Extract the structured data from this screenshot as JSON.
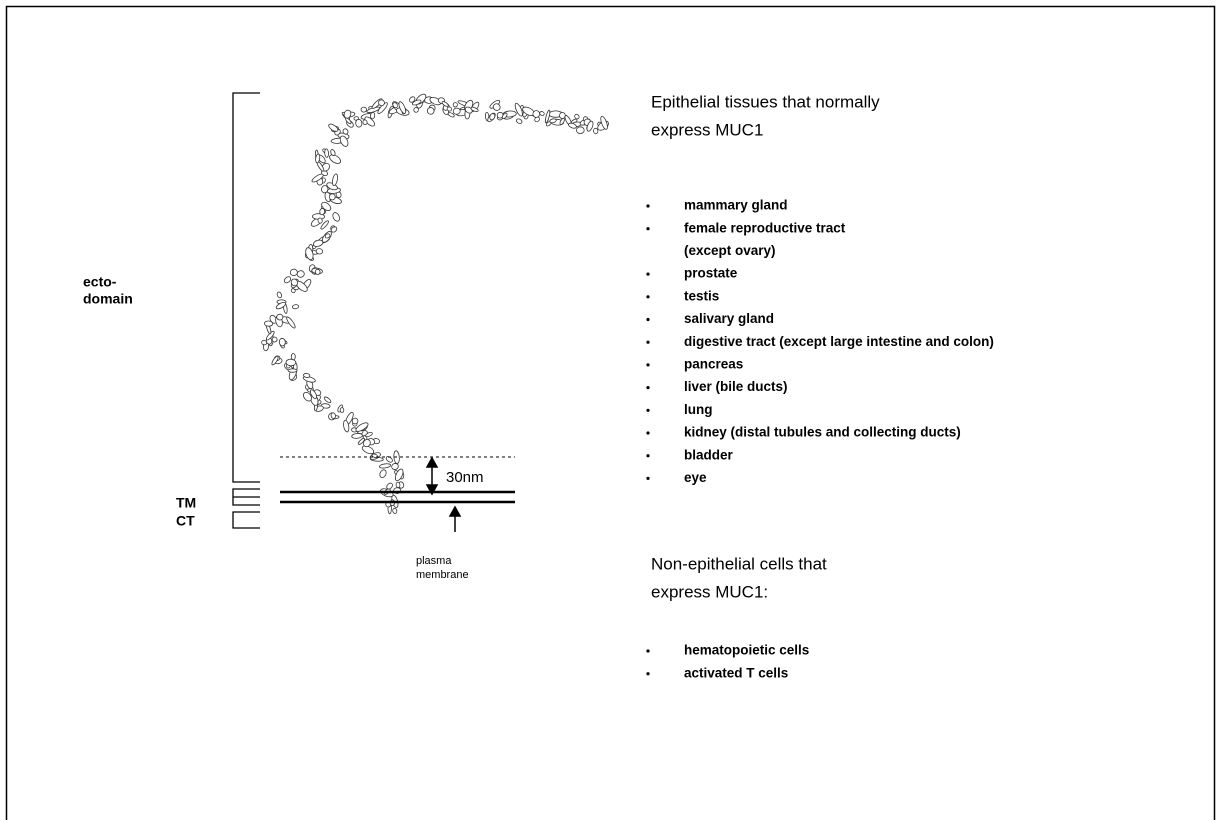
{
  "figure": {
    "labels": {
      "ecto": [
        "ecto-",
        "domain"
      ],
      "tm": "TM",
      "ct": "CT",
      "distance": "30nm",
      "membrane": [
        "plasma",
        "membrane"
      ]
    },
    "sections": [
      {
        "heading": [
          "Epithelial tissues that normally",
          "express MUC1"
        ],
        "items": [
          [
            "mammary gland"
          ],
          [
            "female reproductive tract",
            "(except ovary)"
          ],
          [
            "prostate"
          ],
          [
            "testis"
          ],
          [
            "salivary gland"
          ],
          [
            "digestive tract (except large intestine and colon)"
          ],
          [
            "pancreas"
          ],
          [
            "liver (bile ducts)"
          ],
          [
            "lung"
          ],
          [
            "kidney (distal tubules and collecting ducts)"
          ],
          [
            "bladder"
          ],
          [
            "eye"
          ]
        ]
      },
      {
        "heading": [
          "Non-epithelial cells that",
          "express MUC1:"
        ],
        "items": [
          [
            "hematopoietic cells"
          ],
          [
            "activated T cells"
          ]
        ]
      }
    ]
  }
}
